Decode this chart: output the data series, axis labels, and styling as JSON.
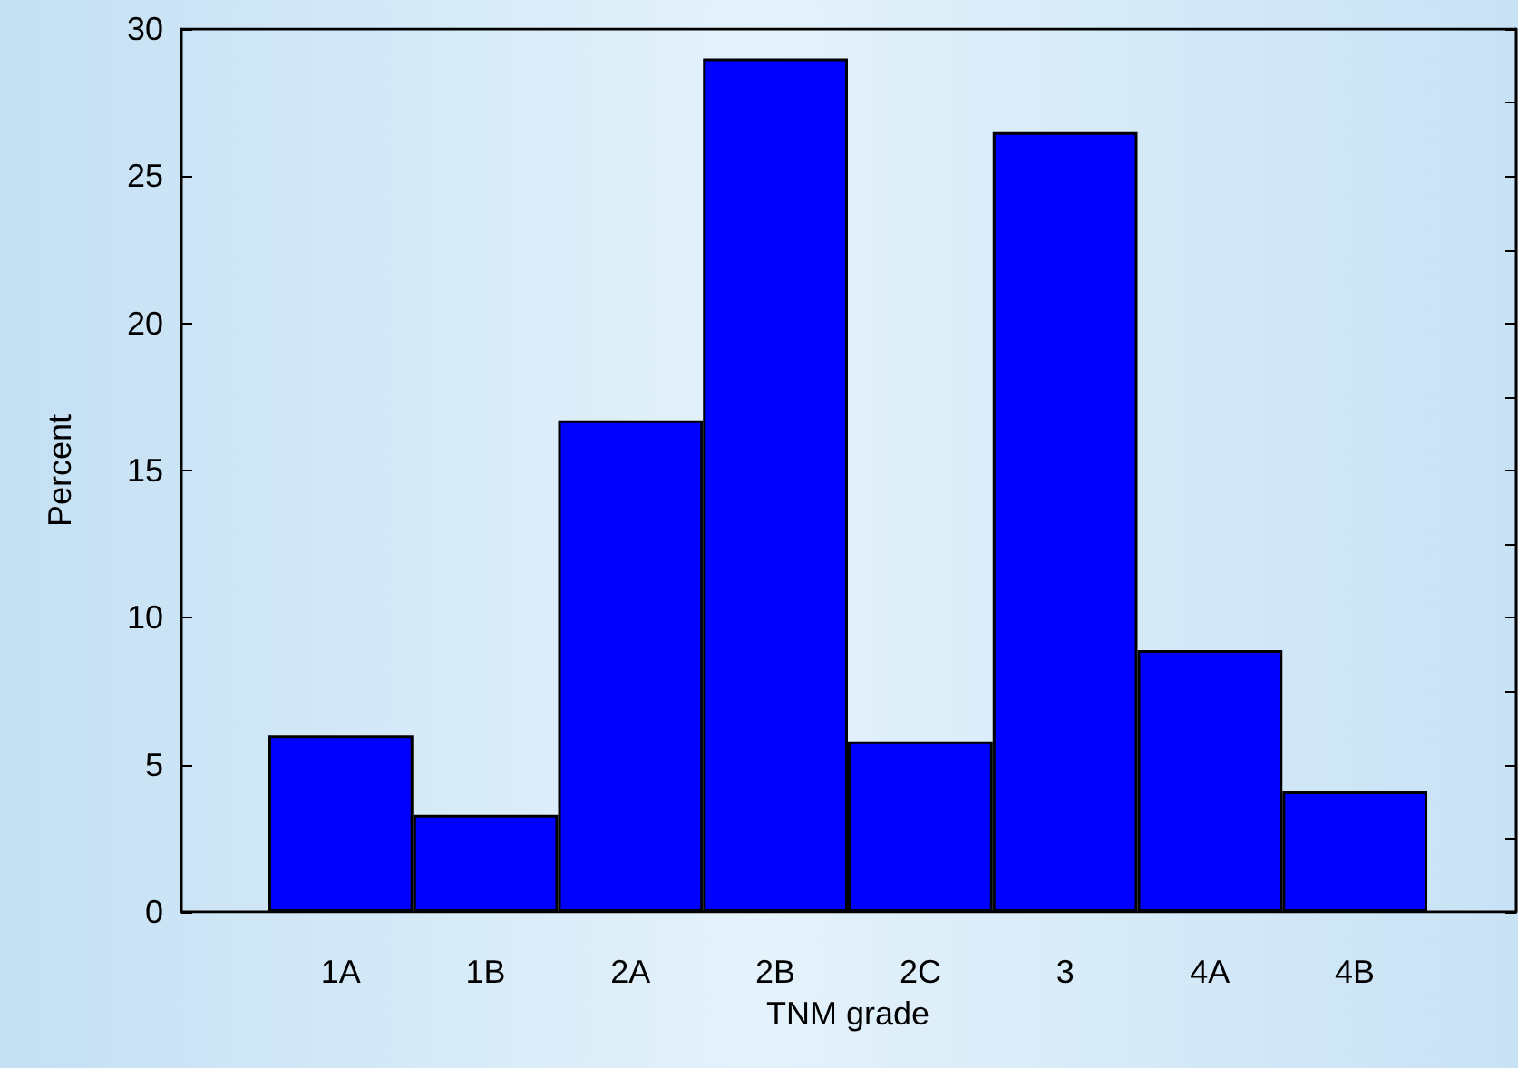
{
  "chart_data": {
    "type": "bar",
    "categories": [
      "1A",
      "1B",
      "2A",
      "2B",
      "2C",
      "3",
      "4A",
      "4B"
    ],
    "values": [
      6.0,
      3.3,
      16.7,
      29.0,
      5.8,
      26.5,
      8.9,
      4.1
    ],
    "color": "#0000ff",
    "xlabel": "TNM grade",
    "ylabel": "Percent",
    "ylim": [
      0,
      30
    ],
    "yticks": [
      0,
      5,
      10,
      15,
      20,
      25,
      30
    ],
    "grid": false
  }
}
